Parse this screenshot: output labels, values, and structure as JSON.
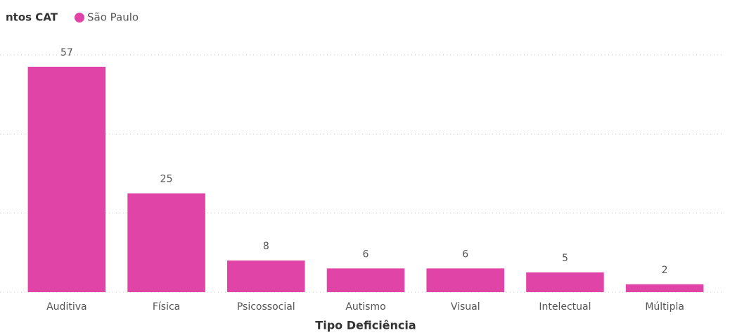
{
  "chart_data": {
    "type": "bar",
    "legend_title": "ntos CAT",
    "x_label": "Tipo Deficiência",
    "categories": [
      "Auditiva",
      "Física",
      "Psicossocial",
      "Autismo",
      "Visual",
      "Intelectual",
      "Múltipla"
    ],
    "series": [
      {
        "name": "São Paulo",
        "color": "#e044a7",
        "values": [
          57,
          25,
          8,
          6,
          6,
          5,
          2
        ]
      }
    ],
    "ylim": [
      0,
      60
    ],
    "yticks": [
      0,
      20,
      40,
      60
    ],
    "ytick_labels": false,
    "grid": true,
    "legend": "top-left"
  }
}
